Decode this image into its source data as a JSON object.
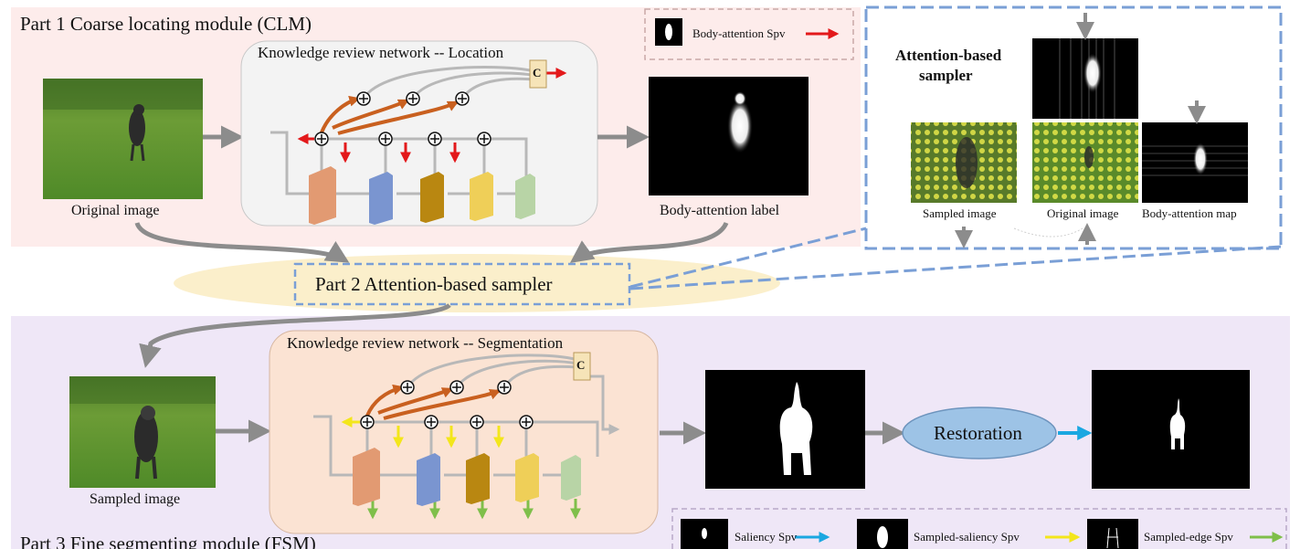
{
  "part1": {
    "title": "Part 1    Coarse locating module (CLM)"
  },
  "part2": {
    "title": "Part 2    Attention-based sampler"
  },
  "part3": {
    "title": "Part 3    Fine segmenting module (FSM)"
  },
  "clm": {
    "network_title": "Knowledge review network -- Location",
    "concat_label": "C",
    "input_caption": "Original image",
    "output_caption": "Body-attention label",
    "legend": {
      "label": "Body-attention Spv"
    }
  },
  "sampler_detail": {
    "title_line1": "Attention-based",
    "title_line2": "sampler",
    "caption_sampled": "Sampled image",
    "caption_original": "Original image",
    "caption_map": "Body-attention map"
  },
  "fsm": {
    "network_title": "Knowledge review network -- Segmentation",
    "concat_label": "C",
    "input_caption": "Sampled image",
    "restoration_label": "Restoration",
    "legend": {
      "saliency": "Saliency Spv",
      "sampled_saliency": "Sampled-saliency Spv",
      "sampled_edge": "Sampled-edge Spv"
    }
  },
  "colors": {
    "clm_bg": "#fdeceb",
    "fsm_bg": "#efe7f7",
    "network_bg": "#f3f3f3",
    "seg_network_bg": "#fbe3d3",
    "sampler_bg": "#fbefcb",
    "red_arrow": "#e3191b",
    "blue_arrow": "#1aa7e1",
    "yellow_arrow": "#f3e61b",
    "green_arrow": "#7fbf4a",
    "orange_arrow": "#c9601f",
    "dashed_blue": "#7a9fd6",
    "restoration_fill": "#9dc3e6"
  }
}
